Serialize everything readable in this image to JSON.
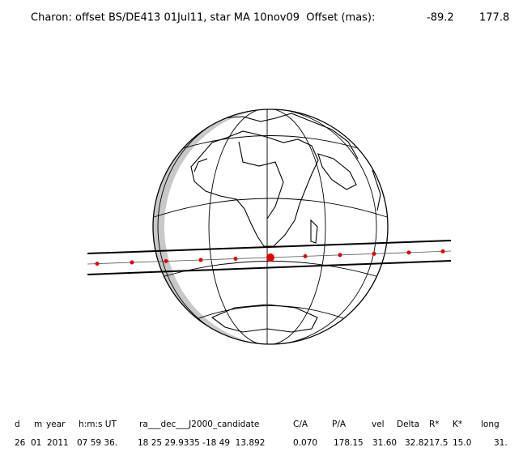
{
  "title": "Charon: offset BS/DE413 01Jul11, star MA 10nov09  Offset (mas):",
  "offset": [
    "-89.2",
    "177.8"
  ],
  "table": {
    "headers": [
      "d",
      "m",
      "year",
      "h:m:s UT",
      "ra___dec___J2000_candidate",
      "C/A",
      "P/A",
      "vel",
      "Delta",
      "R*",
      "K*",
      "long"
    ],
    "rows": [
      [
        "26",
        "01",
        "2011",
        "07 59 36.",
        "18 25 29.9335 -18 49  13.892",
        "0.070",
        "178.15",
        "31.60",
        "32.82",
        "17.5",
        "15.0",
        "31."
      ]
    ]
  }
}
